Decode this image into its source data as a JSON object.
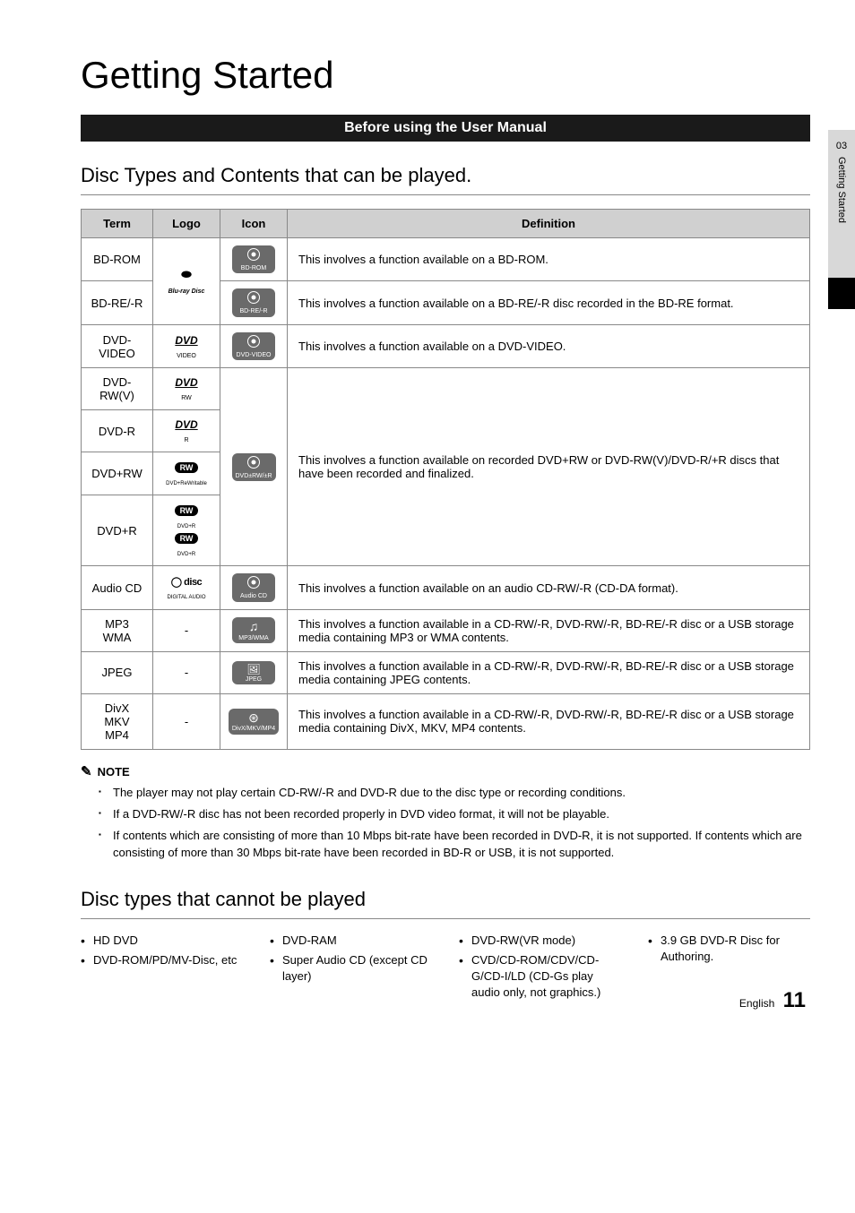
{
  "page": {
    "title": "Getting Started",
    "banner": "Before using the User Manual",
    "side_num": "03",
    "side_label": "Getting Started",
    "footer_lang": "English",
    "footer_page": "11"
  },
  "section1": {
    "heading": "Disc Types and Contents that can be played.",
    "headers": {
      "term": "Term",
      "logo": "Logo",
      "icon": "Icon",
      "definition": "Definition"
    },
    "rows": [
      {
        "term": "BD-ROM",
        "icon_label": "BD-ROM",
        "definition": "This involves a function available on a BD-ROM."
      },
      {
        "term": "BD-RE/-R",
        "icon_label": "BD-RE/-R",
        "definition": "This involves a function available on a BD-RE/-R disc recorded in the BD-RE format."
      },
      {
        "term": "DVD-VIDEO",
        "icon_label": "DVD-VIDEO",
        "definition": "This involves a function available on a DVD-VIDEO."
      },
      {
        "term": "DVD-RW(V)"
      },
      {
        "term": "DVD-R"
      },
      {
        "term": "DVD+RW",
        "icon_label": "DVD±RW/±R",
        "def_merged": "This involves a function available on recorded DVD+RW or DVD-RW(V)/DVD-R/+R discs that have been recorded and finalized."
      },
      {
        "term": "DVD+R"
      },
      {
        "term": "Audio CD",
        "icon_label": "Audio CD",
        "definition": "This involves a function available on an audio CD-RW/-R (CD-DA format)."
      },
      {
        "term": "MP3\nWMA",
        "icon_label": "MP3/WMA",
        "definition": "This involves a function available in a CD-RW/-R, DVD-RW/-R, BD-RE/-R disc or a USB storage media containing MP3 or WMA contents."
      },
      {
        "term": "JPEG",
        "icon_label": "JPEG",
        "definition": "This involves a function available in a CD-RW/-R, DVD-RW/-R, BD-RE/-R disc or a USB storage media containing JPEG contents."
      },
      {
        "term": "DivX\nMKV\nMP4",
        "icon_label": "DivX/MKV/MP4",
        "definition": "This involves a function available in a CD-RW/-R, DVD-RW/-R, BD-RE/-R disc or a USB storage media containing DivX, MKV, MP4 contents."
      }
    ],
    "logos": {
      "bluray": "Blu-ray Disc",
      "dvd_video": "DVD VIDEO",
      "dvd_rw": "DVD RW",
      "dvd_r": "DVD R",
      "rw_plus": "RW",
      "disc": "disc"
    }
  },
  "note": {
    "heading": "NOTE",
    "items": [
      "The player may not play certain CD-RW/-R and DVD-R due to the disc type or recording conditions.",
      "If a DVD-RW/-R disc has not been recorded properly in DVD video format, it will not be playable.",
      "If contents which are consisting of more than 10 Mbps bit-rate have been recorded in DVD-R, it is not supported. If contents which are consisting of more than 30 Mbps bit-rate have been recorded in BD-R or USB, it is not supported."
    ]
  },
  "section2": {
    "heading": "Disc types that cannot be played",
    "cols": [
      [
        "HD DVD",
        "DVD-ROM/PD/MV-Disc, etc"
      ],
      [
        "DVD-RAM",
        "Super Audio CD (except CD layer)"
      ],
      [
        "DVD-RW(VR mode)",
        "CVD/CD-ROM/CDV/CD-G/CD-I/LD (CD-Gs play audio only, not graphics.)"
      ],
      [
        "3.9 GB DVD-R Disc for Authoring."
      ]
    ]
  },
  "colors": {
    "banner_bg": "#1a1a1a",
    "header_bg": "#d0d0d0",
    "icon_bg": "#6a6a6a",
    "border": "#888888"
  }
}
